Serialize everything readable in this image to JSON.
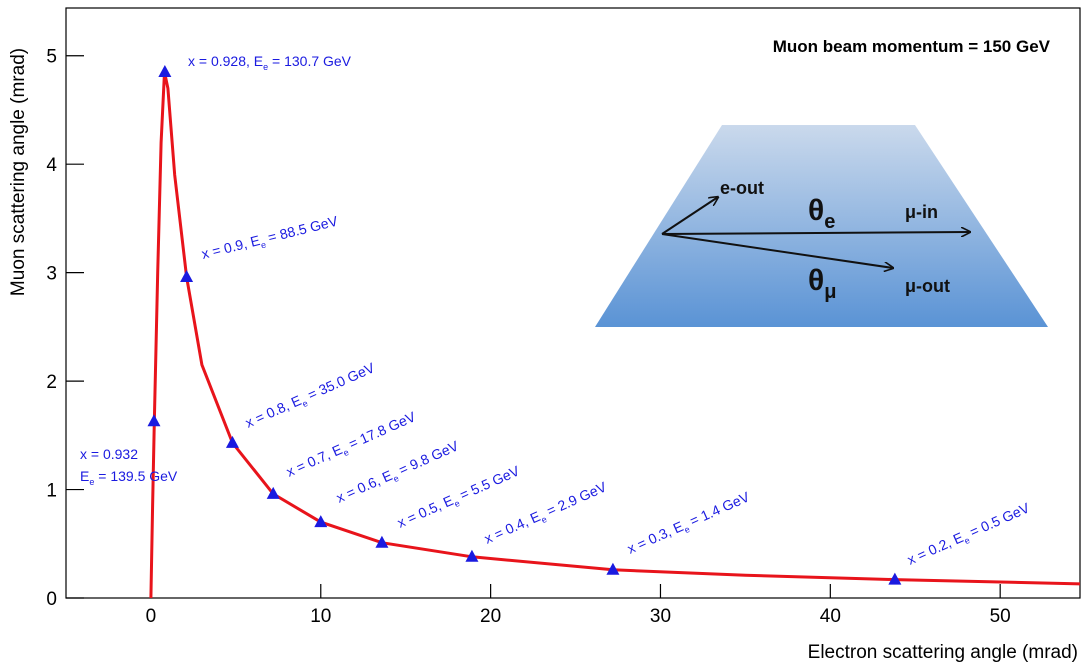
{
  "chart_data": {
    "type": "line",
    "title": "Muon beam momentum  = 150 GeV",
    "x_label": "Electron scattering angle (mrad)",
    "y_label": "Muon scattering angle (mrad)",
    "xlim": [
      -5,
      54.7
    ],
    "xticks": [
      0,
      10,
      20,
      30,
      40,
      50
    ],
    "ylim": [
      0,
      5.44
    ],
    "yticks": [
      0,
      1,
      2,
      3,
      4,
      5
    ],
    "series": [
      {
        "mode": "line",
        "color": "#e8141b",
        "x": [
          0,
          0.1,
          0.2,
          0.4,
          0.6,
          0.8,
          1.0,
          1.4,
          2.1,
          3,
          4.8,
          7.2,
          10,
          13.6,
          18.9,
          27.2,
          35,
          43.8,
          54.7
        ],
        "values": [
          0,
          0.85,
          1.62,
          3.0,
          4.2,
          4.85,
          4.7,
          3.9,
          2.96,
          2.15,
          1.43,
          0.96,
          0.7,
          0.51,
          0.38,
          0.26,
          0.21,
          0.17,
          0.13
        ]
      },
      {
        "mode": "markers",
        "color": "#1a1ae0",
        "x": [
          0.18,
          0.82,
          2.1,
          4.8,
          7.2,
          10.0,
          13.6,
          18.9,
          27.2,
          43.8
        ],
        "values": [
          1.63,
          4.85,
          2.96,
          1.43,
          0.96,
          0.7,
          0.51,
          0.38,
          0.26,
          0.17
        ]
      }
    ],
    "annotations": [
      {
        "line1": "x = 0.932",
        "prefix": "E",
        "subscript": "e",
        "suffix": " = 139.5 GeV"
      },
      {
        "prefix": "x = 0.928, E",
        "subscript": "e",
        "suffix": " = 130.7 GeV"
      },
      {
        "prefix": "x =  0.9, E",
        "subscript": "e",
        "suffix": " = 88.5 GeV"
      },
      {
        "prefix": "x =  0.8, E",
        "subscript": "e",
        "suffix": " = 35.0 GeV"
      },
      {
        "prefix": "x =  0.7, E",
        "subscript": "e",
        "suffix": " = 17.8 GeV"
      },
      {
        "prefix": "x =  0.6, E",
        "subscript": "e",
        "suffix": " =  9.8 GeV"
      },
      {
        "prefix": "x =  0.5, E",
        "subscript": "e",
        "suffix": " = 5.5 GeV"
      },
      {
        "prefix": "x =  0.4, E",
        "subscript": "e",
        "suffix": " =  2.9 GeV"
      },
      {
        "prefix": "x =  0.3, E",
        "subscript": "e",
        "suffix": " = 1.4 GeV"
      },
      {
        "prefix": "x =  0.2, E",
        "subscript": "e",
        "suffix": " = 0.5 GeV"
      }
    ],
    "inset": {
      "e_out": "e-out",
      "theta": "θ",
      "theta_e_sub": "e",
      "mu_in": "μ-in",
      "theta_mu_sub": "μ",
      "mu_out": "μ-out"
    }
  }
}
